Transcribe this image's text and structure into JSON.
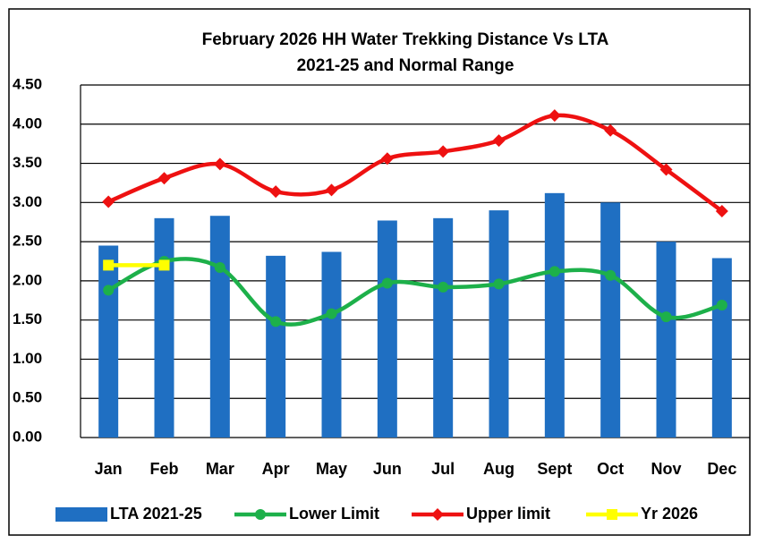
{
  "chart_data": {
    "type": "bar",
    "title": [
      "February 2026 HH Water Trekking Distance Vs LTA",
      "2021-25 and Normal Range"
    ],
    "categories": [
      "Jan",
      "Feb",
      "Mar",
      "Apr",
      "May",
      "Jun",
      "Jul",
      "Aug",
      "Sept",
      "Oct",
      "Nov",
      "Dec"
    ],
    "series": [
      {
        "name": "LTA  2021-25",
        "type": "bar",
        "color": "#1f6fc2",
        "values": [
          2.45,
          2.8,
          2.83,
          2.32,
          2.37,
          2.77,
          2.8,
          2.9,
          3.12,
          3.0,
          2.5,
          2.29
        ]
      },
      {
        "name": "Lower Limit",
        "type": "line",
        "marker": "circle",
        "color": "#1db04a",
        "values": [
          1.88,
          2.25,
          2.17,
          1.48,
          1.58,
          1.97,
          1.92,
          1.96,
          2.12,
          2.07,
          1.54,
          1.69
        ]
      },
      {
        "name": "Upper limit",
        "type": "line",
        "marker": "diamond",
        "color": "#ee1111",
        "values": [
          3.01,
          3.31,
          3.49,
          3.14,
          3.16,
          3.56,
          3.65,
          3.79,
          4.11,
          3.92,
          3.42,
          2.89
        ]
      },
      {
        "name": "Yr 2026",
        "type": "line",
        "marker": "square",
        "color": "#ffff00",
        "values": [
          2.2,
          2.2,
          null,
          null,
          null,
          null,
          null,
          null,
          null,
          null,
          null,
          null
        ]
      }
    ],
    "ylim": [
      0,
      4.5
    ],
    "yticks": [
      {
        "value": 0,
        "label": "0.00"
      },
      {
        "value": 0.5,
        "label": "0.50"
      },
      {
        "value": 1,
        "label": "1.00"
      },
      {
        "value": 1.5,
        "label": "1.50"
      },
      {
        "value": 2,
        "label": "2.00"
      },
      {
        "value": 2.5,
        "label": "2.50"
      },
      {
        "value": 3,
        "label": "3.00"
      },
      {
        "value": 3.5,
        "label": "3.50"
      },
      {
        "value": 4,
        "label": "4.00"
      },
      {
        "value": 4.5,
        "label": "4.50"
      }
    ],
    "grid": true,
    "legend": "bottom"
  }
}
